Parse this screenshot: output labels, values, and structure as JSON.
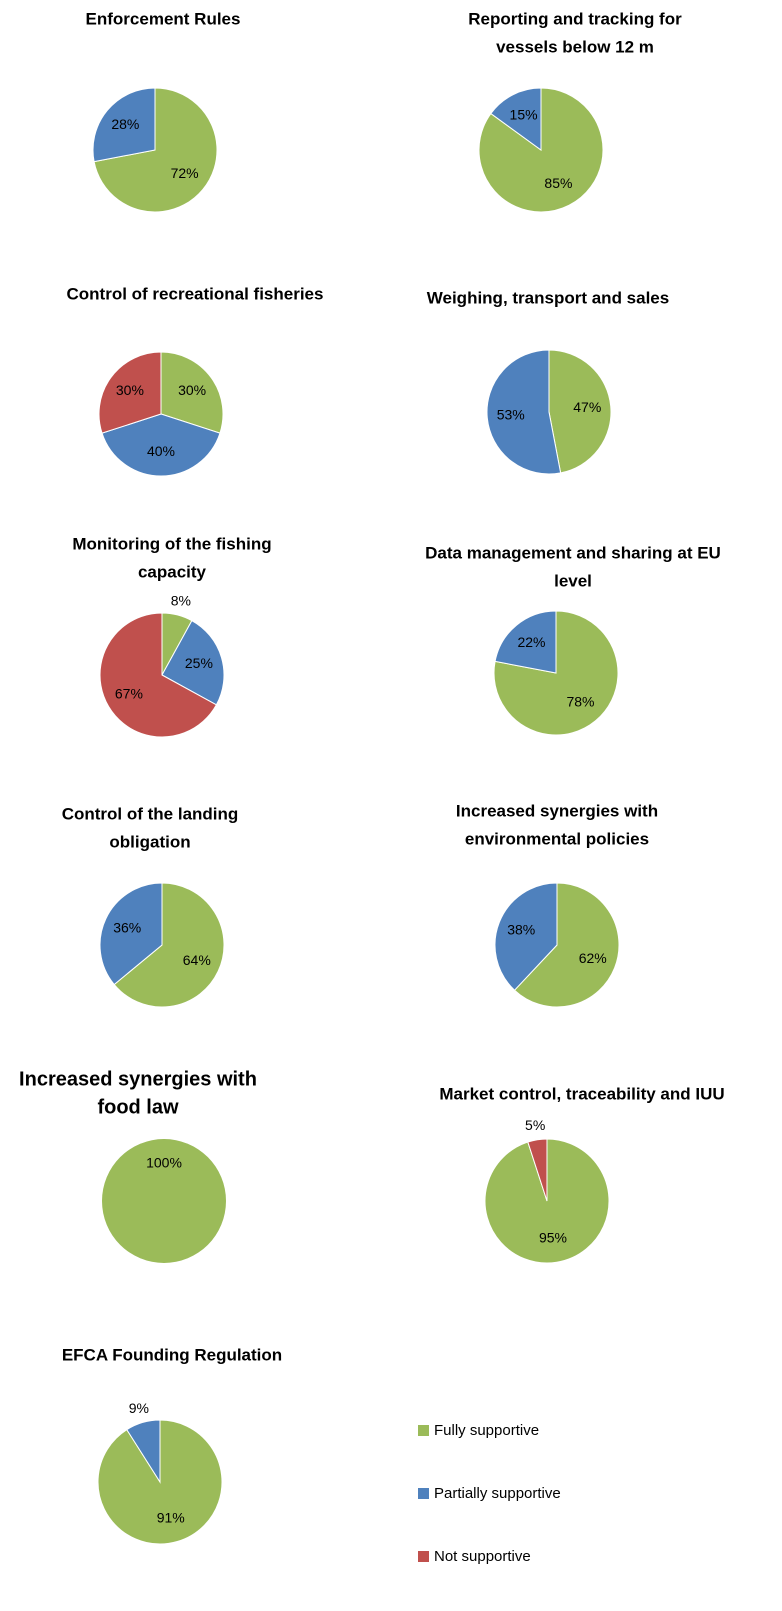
{
  "legend": {
    "labels": [
      "Fully supportive",
      "Partially supportive",
      "Not supportive"
    ],
    "colors": [
      "#9bbb59",
      "#4f81bd",
      "#c0504d"
    ]
  },
  "chart_data": [
    {
      "type": "pie",
      "title": [
        "Enforcement Rules"
      ],
      "categories": [
        "Fully supportive",
        "Partially supportive"
      ],
      "values": [
        72,
        28
      ],
      "value_labels": [
        "72%",
        "28%"
      ]
    },
    {
      "type": "pie",
      "title": [
        "Reporting and tracking for",
        "vessels below 12 m"
      ],
      "categories": [
        "Fully supportive",
        "Partially supportive"
      ],
      "values": [
        85,
        15
      ],
      "value_labels": [
        "85%",
        "15%"
      ]
    },
    {
      "type": "pie",
      "title": [
        "Control of recreational fisheries"
      ],
      "categories": [
        "Fully supportive",
        "Partially supportive",
        "Not supportive"
      ],
      "values": [
        30,
        40,
        30
      ],
      "value_labels": [
        "30%",
        "40%",
        "30%"
      ]
    },
    {
      "type": "pie",
      "title": [
        "Weighing, transport and sales"
      ],
      "categories": [
        "Fully supportive",
        "Partially supportive"
      ],
      "values": [
        47,
        53
      ],
      "value_labels": [
        "47%",
        "53%"
      ]
    },
    {
      "type": "pie",
      "title": [
        "Monitoring of the fishing",
        "capacity"
      ],
      "categories": [
        "Fully supportive",
        "Partially supportive",
        "Not supportive"
      ],
      "values": [
        8,
        25,
        67
      ],
      "value_labels": [
        "8%",
        "25%",
        "67%"
      ]
    },
    {
      "type": "pie",
      "title": [
        "Data management and sharing at EU",
        "level"
      ],
      "categories": [
        "Fully supportive",
        "Partially supportive"
      ],
      "values": [
        78,
        22
      ],
      "value_labels": [
        "78%",
        "22%"
      ]
    },
    {
      "type": "pie",
      "title": [
        "Control of the landing",
        "obligation"
      ],
      "categories": [
        "Fully supportive",
        "Partially supportive"
      ],
      "values": [
        64,
        36
      ],
      "value_labels": [
        "64%",
        "36%"
      ]
    },
    {
      "type": "pie",
      "title": [
        "Increased synergies with",
        "environmental policies"
      ],
      "categories": [
        "Fully supportive",
        "Partially supportive"
      ],
      "values": [
        62,
        38
      ],
      "value_labels": [
        "62%",
        "38%"
      ]
    },
    {
      "type": "pie",
      "title": [
        "Increased synergies with",
        "food law"
      ],
      "categories": [
        "Fully supportive"
      ],
      "values": [
        100
      ],
      "value_labels": [
        "100%"
      ]
    },
    {
      "type": "pie",
      "title": [
        "Market control, traceability and IUU"
      ],
      "categories": [
        "Fully supportive",
        "Not supportive"
      ],
      "values": [
        95,
        5
      ],
      "value_labels": [
        "95%",
        "5%"
      ]
    },
    {
      "type": "pie",
      "title": [
        "EFCA Founding Regulation"
      ],
      "categories": [
        "Fully supportive",
        "Partially supportive"
      ],
      "values": [
        91,
        9
      ],
      "value_labels": [
        "91%",
        "9%"
      ]
    }
  ]
}
